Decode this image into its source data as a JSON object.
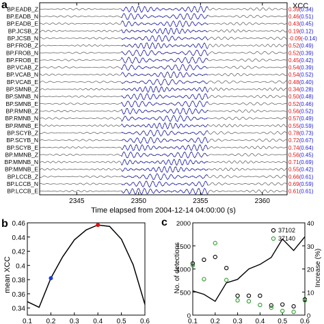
{
  "figure": {
    "panel_a": {
      "label": "a",
      "xcc_header": "XCC",
      "xlabel": "Time elapsed from 2004-12-14 04:00:00 (s)",
      "xticks": [
        "2345",
        "2350",
        "2355",
        "2360"
      ],
      "colors": {
        "trace": "#555555",
        "template": "#1a1ad8",
        "xcc_red": "#e01010",
        "xcc_blue": "#1a1ad8"
      }
    },
    "panel_b": {
      "label": "b",
      "ylabel": "mean XCC",
      "xticks": [
        "0.1",
        "0.2",
        "0.3",
        "0.4",
        "0.5",
        "0.6"
      ],
      "yticks": [
        "0.34",
        "0.36",
        "0.38",
        "0.4",
        "0.42",
        "0.44",
        "0.46"
      ],
      "marker_colors": {
        "blue": "#1a3ad8",
        "red": "#e01010"
      }
    },
    "panel_c": {
      "label": "c",
      "ylabel_left": "No. of detections",
      "ylabel_right": "Increase (%)",
      "yticks_left": [
        "0",
        "500",
        "1000",
        "1500",
        "2000"
      ],
      "yticks_right": [
        "0",
        "10",
        "20",
        "30",
        "40"
      ],
      "xticks": [
        "0.1",
        "0.2",
        "0.3",
        "0.4",
        "0.5",
        "0.6"
      ],
      "legend": [
        {
          "label": "37102",
          "color": "#000000"
        },
        {
          "label": "37140",
          "color": "#2a9a2a"
        }
      ]
    }
  },
  "chart_data": [
    {
      "type": "line",
      "panel": "a",
      "xlabel": "Time elapsed from 2004-12-14 04:00:00 (s)",
      "xlim": [
        2342,
        2362
      ],
      "channels": [
        {
          "name": "BP.EADB_Z",
          "xcc": "0.39",
          "xcc_paren": "(0.34)"
        },
        {
          "name": "BP.EADB_N",
          "xcc": "0.46",
          "xcc_paren": "(0.51)"
        },
        {
          "name": "BP.EADB_E",
          "xcc": "0.43",
          "xcc_paren": "(0.45)"
        },
        {
          "name": "BP.JCSB_Z",
          "xcc": "0.19",
          "xcc_paren": "(0.12)"
        },
        {
          "name": "BP.JCSB_N",
          "xcc": "-0.09",
          "xcc_paren": "(-0.14)"
        },
        {
          "name": "BP.FROB_Z",
          "xcc": "0.52",
          "xcc_paren": "(0.49)"
        },
        {
          "name": "BP.FROB_N",
          "xcc": "0.52",
          "xcc_paren": "(0.39)"
        },
        {
          "name": "BP.FROB_E",
          "xcc": "0.45",
          "xcc_paren": "(0.42)"
        },
        {
          "name": "BP.VCAB_Z",
          "xcc": "0.54",
          "xcc_paren": "(0.39)"
        },
        {
          "name": "BP.VCAB_N",
          "xcc": "0.54",
          "xcc_paren": "(0.52)"
        },
        {
          "name": "BP.VCAB_E",
          "xcc": "0.48",
          "xcc_paren": "(0.40)"
        },
        {
          "name": "BP.SMNB_Z",
          "xcc": "0.34",
          "xcc_paren": "(0.28)"
        },
        {
          "name": "BP.SMNB_N",
          "xcc": "0.50",
          "xcc_paren": "(0.48)"
        },
        {
          "name": "BP.SMNB_E",
          "xcc": "0.52",
          "xcc_paren": "(0.46)"
        },
        {
          "name": "BP.RMNB_Z",
          "xcc": "0.56",
          "xcc_paren": "(0.52)"
        },
        {
          "name": "BP.RMNB_N",
          "xcc": "0.57",
          "xcc_paren": "(0.49)"
        },
        {
          "name": "BP.RMNB_E",
          "xcc": "0.55",
          "xcc_paren": "(0.59)"
        },
        {
          "name": "BP.SCYB_Z",
          "xcc": "0.78",
          "xcc_paren": "(0.73)"
        },
        {
          "name": "BP.SCYB_N",
          "xcc": "0.72",
          "xcc_paren": "(0.67)"
        },
        {
          "name": "BP.SCYB_E",
          "xcc": "0.74",
          "xcc_paren": "(0.64)"
        },
        {
          "name": "BP.MMNB_Z",
          "xcc": "0.56",
          "xcc_paren": "(0.45)"
        },
        {
          "name": "BP.MMNB_N",
          "xcc": "0.71",
          "xcc_paren": "(0.69)"
        },
        {
          "name": "BP.MMNB_E",
          "xcc": "0.55",
          "xcc_paren": "(0.42)"
        },
        {
          "name": "BP.LCCB_Z",
          "xcc": "0.66",
          "xcc_paren": "(0.61)"
        },
        {
          "name": "BP.LCCB_N",
          "xcc": "0.69",
          "xcc_paren": "(0.59)"
        },
        {
          "name": "BP.LCCB_E",
          "xcc": "0.61",
          "xcc_paren": "(0.61)"
        }
      ]
    },
    {
      "type": "line",
      "panel": "b",
      "ylabel": "mean XCC",
      "xlim": [
        0.1,
        0.6
      ],
      "ylim": [
        0.33,
        0.46
      ],
      "x": [
        0.1,
        0.15,
        0.2,
        0.25,
        0.3,
        0.35,
        0.4,
        0.45,
        0.5,
        0.55,
        0.6
      ],
      "y": [
        0.349,
        0.341,
        0.382,
        0.412,
        0.436,
        0.45,
        0.457,
        0.455,
        0.437,
        0.401,
        0.345
      ],
      "markers": [
        {
          "x": 0.2,
          "y": 0.382,
          "color": "#1a3ad8"
        },
        {
          "x": 0.4,
          "y": 0.457,
          "color": "#e01010"
        }
      ]
    },
    {
      "type": "scatter",
      "panel": "c",
      "ylabel": "No. of detections",
      "y2label": "Increase (%)",
      "xlim": [
        0.1,
        0.6
      ],
      "ylim": [
        0,
        2000
      ],
      "y2lim": [
        0,
        40
      ],
      "series": [
        {
          "name": "37102",
          "type": "scatter",
          "x": [
            0.1,
            0.15,
            0.2,
            0.25,
            0.3,
            0.35,
            0.4,
            0.45,
            0.5,
            0.55,
            0.6
          ],
          "values": [
            1120,
            1200,
            1260,
            1020,
            420,
            420,
            420,
            210,
            230,
            190,
            340
          ]
        },
        {
          "name": "37140",
          "type": "scatter",
          "x": [
            0.1,
            0.15,
            0.2,
            0.25,
            0.3,
            0.35,
            0.4,
            0.45,
            0.5,
            0.55,
            0.6
          ],
          "values": [
            1080,
            780,
            1560,
            760,
            320,
            300,
            220,
            160,
            90,
            70,
            320
          ]
        },
        {
          "name": "",
          "type": "line",
          "axis": "right",
          "x": [
            0.1,
            0.15,
            0.2,
            0.25,
            0.3,
            0.35,
            0.4,
            0.45,
            0.5,
            0.55,
            0.6
          ],
          "values": [
            10.5,
            9,
            6,
            14,
            15.5,
            20,
            22,
            25,
            33,
            28,
            34
          ]
        }
      ]
    }
  ]
}
